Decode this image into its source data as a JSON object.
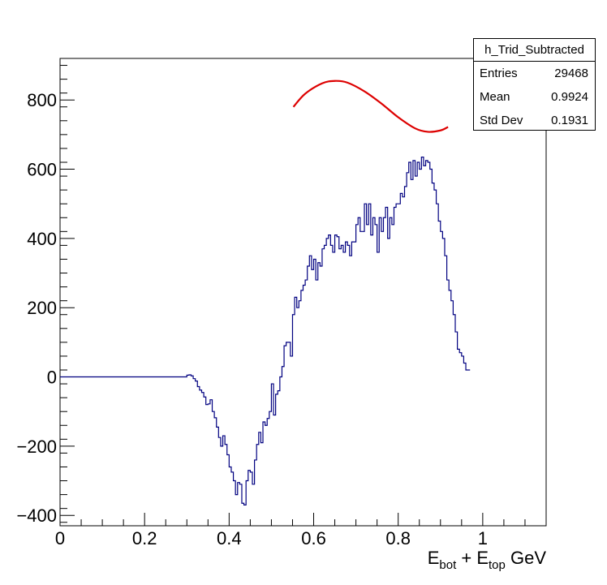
{
  "chart_data": {
    "type": "histogram",
    "xlabel": "E_bot + E_top GeV",
    "xlabel_parts": {
      "e1": "E",
      "s1": "bot",
      "plus": " + E",
      "s2": "top",
      "unit": " GeV"
    },
    "xlim": [
      0,
      1.15
    ],
    "ylim": [
      -430,
      920
    ],
    "x_ticks": [
      0,
      0.2,
      0.4,
      0.6,
      0.8,
      1
    ],
    "x_tick_labels": [
      "0",
      "0.2",
      "0.4",
      "0.6",
      "0.8",
      "1"
    ],
    "y_ticks": [
      -400,
      -200,
      0,
      200,
      400,
      600,
      800
    ],
    "y_tick_labels": [
      "−400",
      "−200",
      "0",
      "200",
      "400",
      "600",
      "800"
    ],
    "histogram": {
      "name": "h_Trid_Subtracted",
      "color": "#000080",
      "bin_width": 0.005,
      "x_start": 0.3,
      "zero_before_start": true,
      "values": [
        5,
        6,
        3,
        -5,
        -12,
        -28,
        -38,
        -45,
        -58,
        -80,
        -78,
        -66,
        -100,
        -118,
        -145,
        -175,
        -200,
        -170,
        -195,
        -225,
        -260,
        -275,
        -300,
        -340,
        -305,
        -310,
        -365,
        -370,
        -300,
        -270,
        -275,
        -310,
        -240,
        -195,
        -160,
        -190,
        -130,
        -140,
        -120,
        -100,
        -20,
        -110,
        -50,
        -40,
        0,
        30,
        90,
        100,
        100,
        60,
        180,
        230,
        200,
        220,
        250,
        265,
        280,
        320,
        350,
        310,
        340,
        280,
        330,
        320,
        370,
        380,
        400,
        410,
        380,
        360,
        410,
        405,
        370,
        380,
        360,
        390,
        380,
        350,
        390,
        390,
        440,
        460,
        420,
        420,
        500,
        440,
        500,
        410,
        460,
        440,
        360,
        460,
        420,
        460,
        490,
        400,
        460,
        440,
        490,
        500,
        500,
        530,
        520,
        550,
        590,
        620,
        570,
        625,
        580,
        620,
        600,
        635,
        610,
        625,
        620,
        600,
        560,
        540,
        500,
        450,
        420,
        400,
        350,
        280,
        250,
        220,
        180,
        130,
        80,
        70,
        60,
        40,
        20,
        20
      ]
    },
    "fit": {
      "color": "#dd0000",
      "x": [
        0.552,
        0.58,
        0.62,
        0.65,
        0.68,
        0.72,
        0.76,
        0.8,
        0.84,
        0.87,
        0.9,
        0.918
      ],
      "y": [
        780,
        818,
        848,
        855,
        850,
        825,
        790,
        750,
        718,
        708,
        712,
        722
      ]
    }
  },
  "stats": {
    "title": "h_Trid_Subtracted",
    "rows": [
      {
        "label": "Entries",
        "value": "29468"
      },
      {
        "label": "Mean",
        "value": "0.9924"
      },
      {
        "label": "Std Dev",
        "value": "0.1931"
      }
    ]
  }
}
